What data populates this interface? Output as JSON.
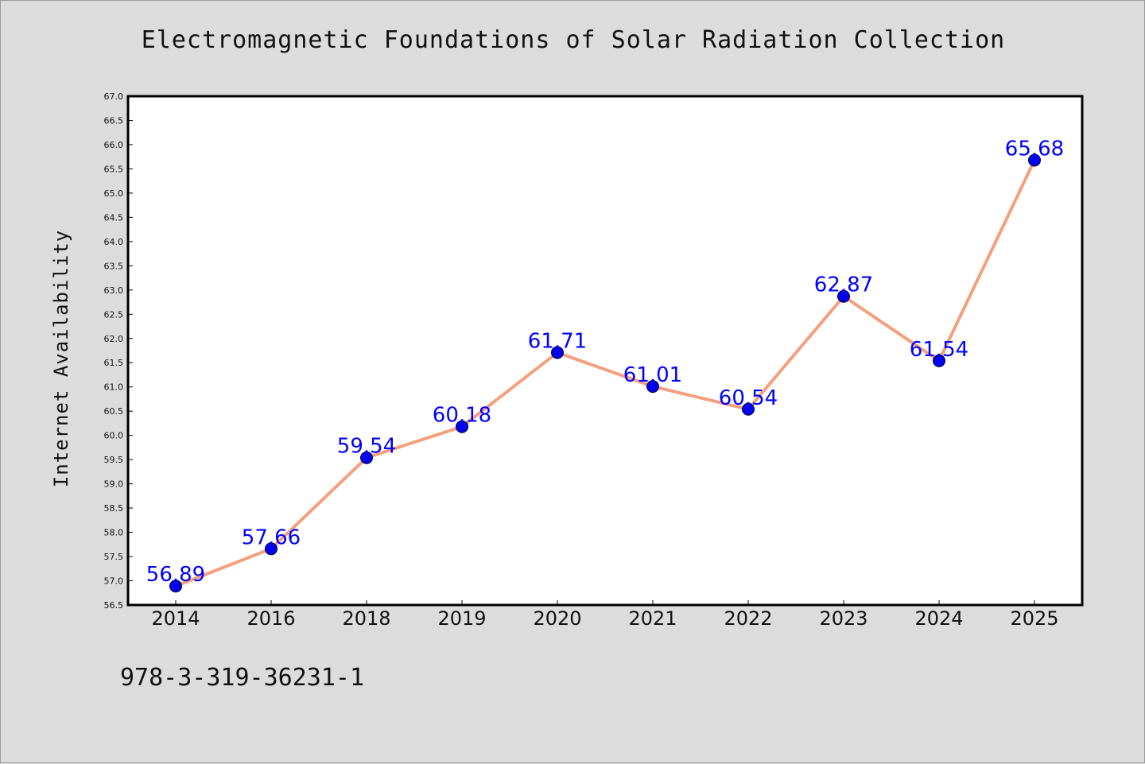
{
  "title": "Electromagnetic Foundations of Solar Radiation Collection",
  "footnote": "978-3-319-36231-1",
  "colors": {
    "background": "#dcdcdc",
    "plot_background": "#ffffff",
    "line": "#f4a07f",
    "marker": "#0000ee",
    "data_label": "#0000ff"
  },
  "chart_data": {
    "type": "line",
    "title": "Electromagnetic Foundations of Solar Radiation Collection",
    "xlabel": "",
    "ylabel": "Internet Availability",
    "categories": [
      "2014",
      "2016",
      "2018",
      "2019",
      "2020",
      "2021",
      "2022",
      "2023",
      "2024",
      "2025"
    ],
    "series": [
      {
        "values": [
          56.89,
          57.66,
          59.54,
          60.18,
          61.71,
          61.01,
          60.54,
          62.87,
          61.54,
          65.68
        ],
        "data_labels": [
          "56.89",
          "57.66",
          "59.54",
          "60.18",
          "61.71",
          "61.01",
          "60.54",
          "62.87",
          "61.54",
          "65.68"
        ]
      }
    ],
    "ylim": [
      56.5,
      67.0
    ],
    "ytick_step": 0.5,
    "grid": false,
    "legend": "none"
  }
}
